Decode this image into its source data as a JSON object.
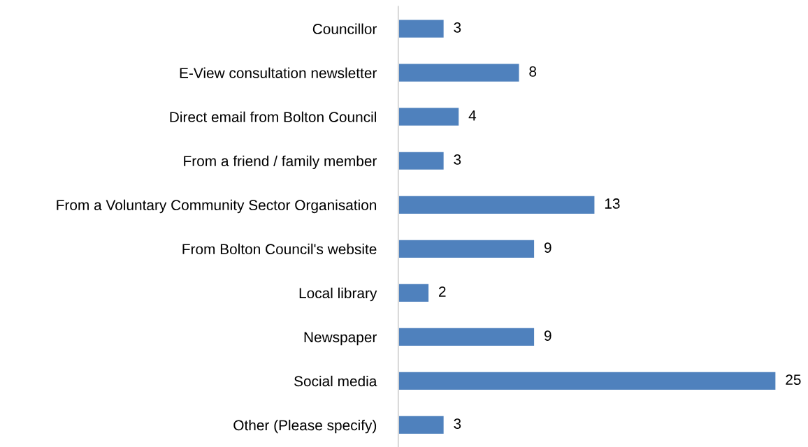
{
  "chart_data": {
    "type": "bar",
    "orientation": "horizontal",
    "categories": [
      "Councillor",
      "E-View consultation newsletter",
      "Direct email from Bolton Council",
      "From a friend / family member",
      "From a Voluntary Community Sector Organisation",
      "From Bolton Council's website",
      "Local library",
      "Newspaper",
      "Social media",
      "Other (Please specify)"
    ],
    "values": [
      3,
      8,
      4,
      3,
      13,
      9,
      2,
      9,
      25,
      3
    ],
    "color": "#4f81bd",
    "data_labels": true,
    "grid": false,
    "legend": false
  }
}
